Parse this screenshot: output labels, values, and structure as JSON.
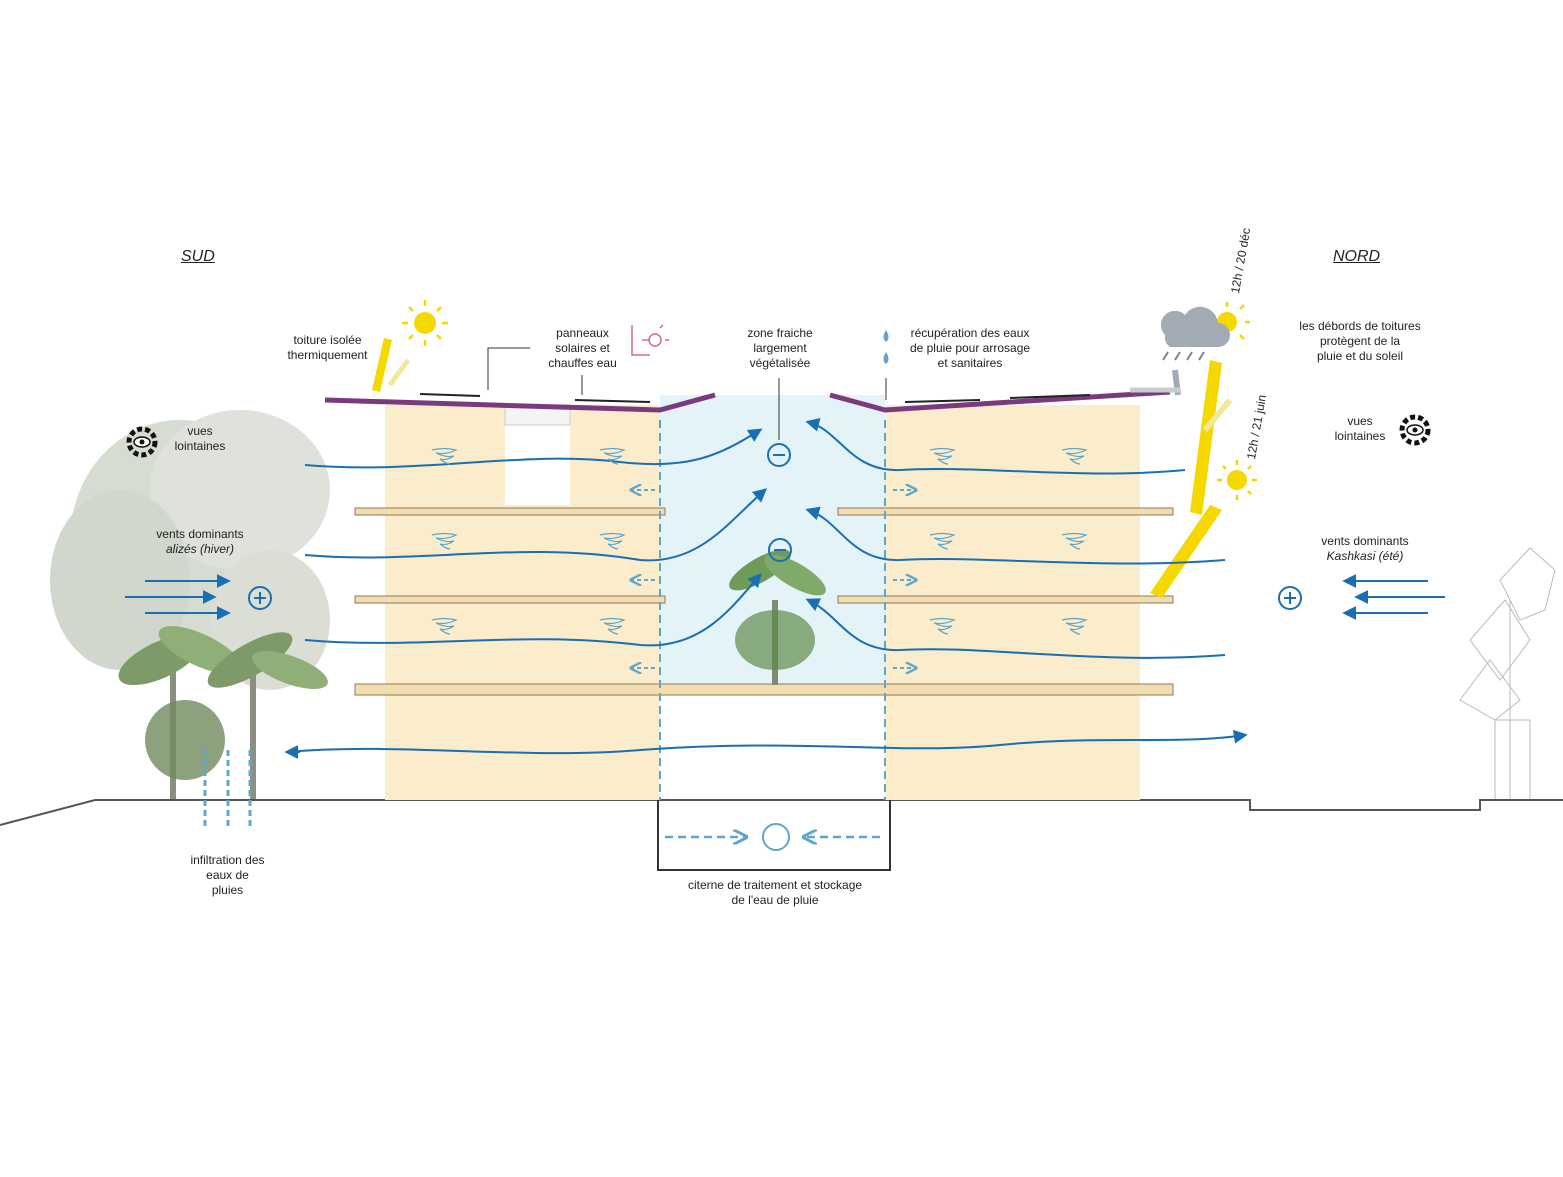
{
  "labels": {
    "south": "SUD",
    "north": "NORD",
    "roof_insulated": "toiture isolée\nthermiquement",
    "solar_panels": "panneaux\nsolaires et\nchauffes eau",
    "cool_zone": "zone fraiche\nlargement\nvégétalisée",
    "rainwater_recovery": "récupération des eaux\nde pluie pour arrosage\net sanitaires",
    "roof_overhangs": "les débords de toitures\nprotègent de la\npluie et du soleil",
    "views_left": "vues\nlointaines",
    "views_right": "vues\nlointaines",
    "winds_south": "vents dominants",
    "winds_south_name": "alizés (hiver)",
    "winds_north": "vents dominants",
    "winds_north_name": "Kashkasi (été)",
    "infiltration": "infiltration des\neaux de\npluies",
    "cistern": "citerne de traitement et stockage\nde l'eau de pluie",
    "sun_dec": "12h / 20 déc",
    "sun_june": "12h / 21 juin"
  },
  "colors": {
    "wind": "#1a6fb3",
    "light_flow": "#5fa6c9",
    "sun": "#f5d800",
    "sun_light": "#f3e89a",
    "building": "#fbeccb",
    "roof": "#7b3a7b",
    "courtyard": "#e4f3f8",
    "cloud": "#9aa3ab",
    "ground": "#555555",
    "plug": "#d46a8a"
  }
}
